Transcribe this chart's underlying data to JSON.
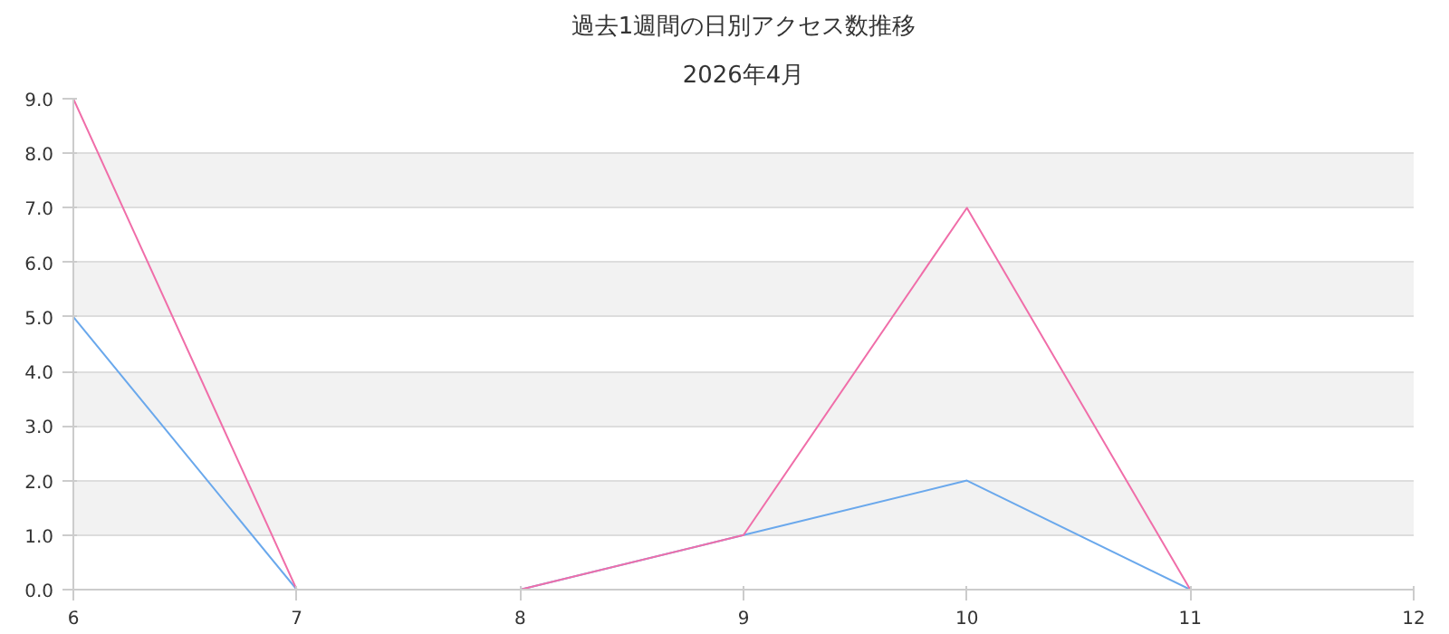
{
  "chart_data": {
    "type": "line",
    "title": "過去1週間の日別アクセス数推移",
    "subtitle": "2026年4月",
    "x": [
      6,
      7,
      8,
      9,
      10,
      11
    ],
    "series": [
      {
        "color": "#6aa8ec",
        "values": [
          5,
          0,
          0,
          1,
          2,
          0
        ]
      },
      {
        "color": "#f06ea9",
        "values": [
          9,
          0,
          0,
          1,
          7,
          0
        ]
      }
    ],
    "xlim": [
      6,
      12
    ],
    "xticks": [
      6,
      7,
      8,
      9,
      10,
      11,
      12
    ],
    "ylim": [
      0,
      9
    ],
    "yticks": [
      {
        "value": 0,
        "label": "0.0"
      },
      {
        "value": 1,
        "label": "1.0"
      },
      {
        "value": 2,
        "label": "2.0"
      },
      {
        "value": 3,
        "label": "3.0"
      },
      {
        "value": 4,
        "label": "4.0"
      },
      {
        "value": 5,
        "label": "5.0"
      },
      {
        "value": 6,
        "label": "6.0"
      },
      {
        "value": 7,
        "label": "7.0"
      },
      {
        "value": 8,
        "label": "8.0"
      },
      {
        "value": 9,
        "label": "9.0"
      }
    ],
    "grid": "y",
    "marker": "none",
    "line_style": "solid"
  }
}
